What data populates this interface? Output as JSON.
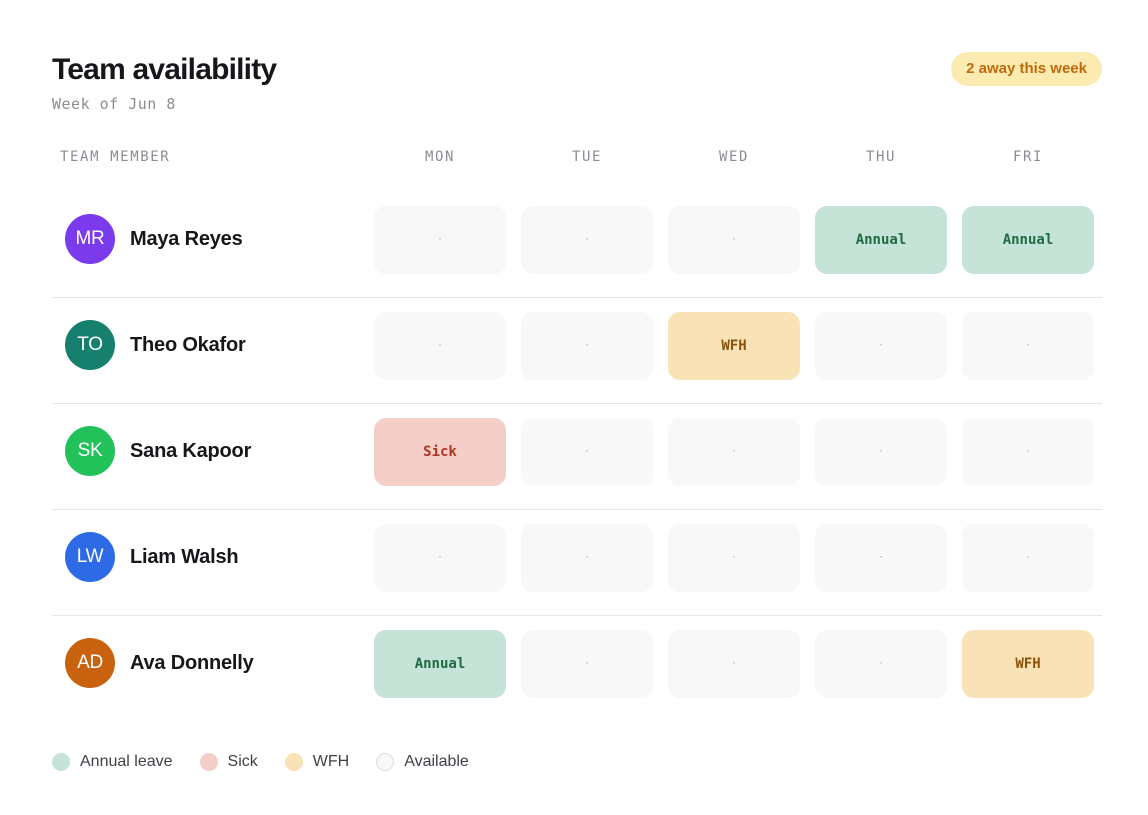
{
  "header": {
    "title": "Team availability",
    "subtitle": "Week of Jun 8",
    "badge": "2 away this week"
  },
  "columns": {
    "member": "TEAM MEMBER",
    "days": [
      "MON",
      "TUE",
      "WED",
      "THU",
      "FRI"
    ]
  },
  "statuses": {
    "annual": {
      "label": "Annual",
      "bg": "#c5e3d6",
      "fg": "#1e6b44"
    },
    "wfh": {
      "label": "WFH",
      "bg": "#f9e3b6",
      "fg": "#8a5208"
    },
    "sick": {
      "label": "Sick",
      "bg": "#f4cfc8",
      "fg": "#b13423"
    },
    "available": {
      "label": "·",
      "bg": "#f8f8f8",
      "fg": "#b4b6ba"
    }
  },
  "members": [
    {
      "name": "Maya Reyes",
      "initials": "MR",
      "color": "#7c3aed",
      "days": [
        "available",
        "available",
        "available",
        "annual",
        "annual"
      ]
    },
    {
      "name": "Theo Okafor",
      "initials": "TO",
      "color": "#167f6e",
      "days": [
        "available",
        "available",
        "wfh",
        "available",
        "available"
      ]
    },
    {
      "name": "Sana Kapoor",
      "initials": "SK",
      "color": "#22c15a",
      "days": [
        "sick",
        "available",
        "available",
        "available",
        "available"
      ]
    },
    {
      "name": "Liam Walsh",
      "initials": "LW",
      "color": "#2f6ae6",
      "days": [
        "available",
        "available",
        "available",
        "available",
        "available"
      ]
    },
    {
      "name": "Ava Donnelly",
      "initials": "AD",
      "color": "#c9620f",
      "days": [
        "annual",
        "available",
        "available",
        "available",
        "wfh"
      ]
    }
  ],
  "legend": [
    {
      "label": "Annual leave",
      "color": "#c5e3d6",
      "border": "#c5e3d6"
    },
    {
      "label": "Sick",
      "color": "#f4cfc8",
      "border": "#f4cfc8"
    },
    {
      "label": "WFH",
      "color": "#f9e3b6",
      "border": "#f9e3b6"
    },
    {
      "label": "Available",
      "color": "#f8f8f8",
      "border": "#dcdde0"
    }
  ]
}
